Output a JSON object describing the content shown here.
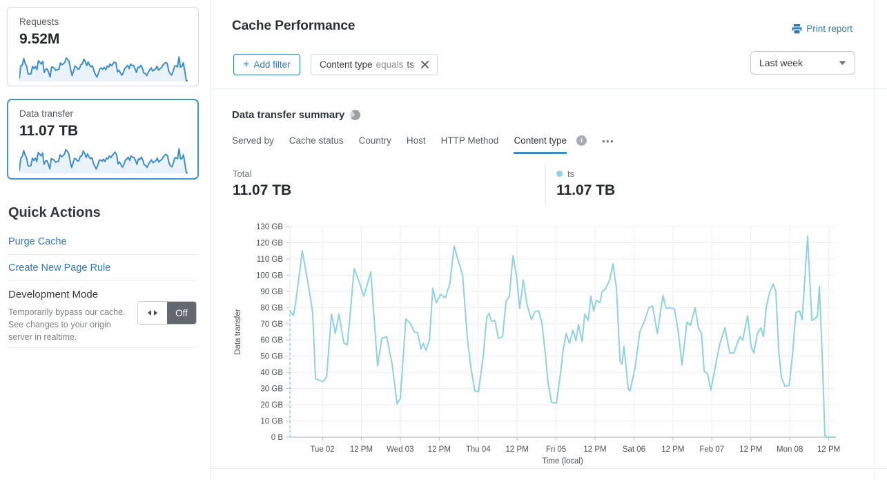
{
  "colors": {
    "accent_blue": "#2f7bb8",
    "selected_card_border": "#3e95ce",
    "spark_line": "#3e8ec9",
    "spark_fill": "#eaf2f9",
    "chart_line": "#8ed1e1",
    "tab_underline": "#3b8dc4",
    "grid": "#ececec",
    "axis": "#a4a9ad"
  },
  "sidebar": {
    "cards": [
      {
        "label": "Requests",
        "value": "9.52M",
        "selected": false,
        "spark": [
          12,
          60,
          62,
          88,
          69,
          59,
          28,
          27,
          29,
          58,
          49,
          58,
          45,
          80,
          74,
          67,
          78,
          34,
          47,
          48,
          35,
          16,
          56,
          54,
          50,
          42,
          45,
          46,
          71,
          64,
          68,
          73,
          91,
          85,
          77,
          46,
          22,
          39,
          59,
          55,
          47,
          48,
          65,
          67,
          86,
          77,
          61,
          75,
          63,
          56,
          60,
          39,
          26,
          16,
          31,
          49,
          51,
          46,
          54,
          45,
          59,
          55,
          67,
          60,
          69,
          75,
          71,
          36,
          43,
          33,
          23,
          33,
          50,
          55,
          62,
          49,
          67,
          61,
          61,
          49,
          34,
          55,
          53,
          62,
          52,
          32,
          30,
          22,
          35,
          44,
          52,
          40,
          44,
          48,
          58,
          43,
          49,
          52,
          62,
          69,
          73,
          69,
          41,
          29,
          24,
          38,
          59,
          60,
          56,
          95,
          55,
          57,
          72,
          38,
          2,
          1
        ]
      },
      {
        "label": "Data transfer",
        "value": "11.07 TB",
        "selected": true,
        "spark": [
          10,
          58,
          64,
          88,
          70,
          60,
          28,
          27,
          29,
          58,
          49,
          58,
          45,
          80,
          74,
          67,
          78,
          34,
          47,
          48,
          35,
          16,
          56,
          54,
          50,
          42,
          45,
          46,
          71,
          64,
          68,
          73,
          91,
          85,
          77,
          46,
          22,
          39,
          57,
          55,
          47,
          48,
          65,
          67,
          86,
          77,
          61,
          75,
          63,
          56,
          60,
          39,
          26,
          16,
          31,
          49,
          51,
          46,
          54,
          45,
          59,
          55,
          67,
          60,
          69,
          75,
          82,
          71,
          36,
          43,
          33,
          23,
          33,
          50,
          55,
          62,
          49,
          67,
          61,
          61,
          49,
          34,
          55,
          53,
          62,
          52,
          32,
          30,
          22,
          35,
          44,
          52,
          40,
          44,
          48,
          58,
          43,
          49,
          52,
          62,
          69,
          73,
          69,
          41,
          29,
          24,
          38,
          59,
          60,
          56,
          95,
          55,
          57,
          72,
          38,
          1,
          0
        ]
      }
    ],
    "quick_actions": {
      "title": "Quick Actions",
      "links": [
        "Purge Cache",
        "Create New Page Rule"
      ],
      "dev_mode": {
        "title": "Development Mode",
        "description": "Temporarily bypass our cache. See changes to your origin server in realtime.",
        "toggle_label": "Off"
      }
    }
  },
  "header": {
    "title": "Cache Performance",
    "print_label": "Print report"
  },
  "filters": {
    "plus": "+",
    "add_label": "Add filter",
    "chip": {
      "field": "Content type",
      "operator": "equals",
      "value": "ts"
    }
  },
  "time_range": {
    "selected": "Last week"
  },
  "summary": {
    "title": "Data transfer summary",
    "tabs": [
      {
        "label": "Served by",
        "active": false
      },
      {
        "label": "Cache status",
        "active": false
      },
      {
        "label": "Country",
        "active": false
      },
      {
        "label": "Host",
        "active": false
      },
      {
        "label": "HTTP Method",
        "active": false
      },
      {
        "label": "Content type",
        "active": true
      }
    ],
    "more_label": "•••",
    "total_label": "Total",
    "total_value": "11.07 TB",
    "series_label": "ts",
    "series_value": "11.07 TB"
  },
  "chart_data": {
    "type": "line",
    "title": "Data transfer summary",
    "xlabel": "Time (local)",
    "ylabel": "Data transfer",
    "unit": "GB",
    "ylim": [
      0,
      130
    ],
    "y_tick_step": 10,
    "y_ticks": [
      "0 B",
      "10 GB",
      "20 GB",
      "30 GB",
      "40 GB",
      "50 GB",
      "60 GB",
      "70 GB",
      "80 GB",
      "90 GB",
      "100 GB",
      "110 GB",
      "120 GB",
      "130 GB"
    ],
    "xlim_hours": [
      0,
      168
    ],
    "x_tick_first_hour": 10,
    "x_tick_interval_hours": 12,
    "x_ticks": [
      "Tue 02",
      "12 PM",
      "Wed 03",
      "12 PM",
      "Thu 04",
      "12 PM",
      "Fri 05",
      "12 PM",
      "Sat 06",
      "12 PM",
      "Feb 07",
      "12 PM",
      "Mon 08",
      "12 PM"
    ],
    "grid": true,
    "start_dashed_baseline": true,
    "series": [
      {
        "name": "ts",
        "color": "#8ed1e1",
        "points": [
          [
            0,
            78
          ],
          [
            1.1,
            75
          ],
          [
            2.1,
            88
          ],
          [
            3.8,
            115
          ],
          [
            6,
            90
          ],
          [
            7,
            77
          ],
          [
            7.9,
            36
          ],
          [
            9.1,
            35
          ],
          [
            10.2,
            34.5
          ],
          [
            11.3,
            37
          ],
          [
            12.8,
            76
          ],
          [
            14,
            64
          ],
          [
            15.1,
            76
          ],
          [
            16.6,
            58
          ],
          [
            17.7,
            57
          ],
          [
            19.8,
            104
          ],
          [
            21.3,
            96
          ],
          [
            22.8,
            87
          ],
          [
            24.9,
            102
          ],
          [
            27,
            44
          ],
          [
            28.3,
            61
          ],
          [
            29.8,
            62
          ],
          [
            31.5,
            45
          ],
          [
            33,
            20.5
          ],
          [
            34,
            24
          ],
          [
            35.7,
            73
          ],
          [
            37.2,
            70
          ],
          [
            38.3,
            65
          ],
          [
            39.3,
            64.5
          ],
          [
            40.4,
            54.5
          ],
          [
            41.1,
            58
          ],
          [
            41.9,
            53.5
          ],
          [
            43,
            60
          ],
          [
            44,
            92
          ],
          [
            45.1,
            83
          ],
          [
            46.4,
            88
          ],
          [
            47.9,
            86
          ],
          [
            49.3,
            95
          ],
          [
            50.6,
            118
          ],
          [
            51.7,
            110
          ],
          [
            53.2,
            100
          ],
          [
            54.7,
            60
          ],
          [
            55.9,
            41
          ],
          [
            57,
            28.5
          ],
          [
            58.1,
            28
          ],
          [
            59.6,
            51
          ],
          [
            60.6,
            74
          ],
          [
            61.3,
            76.5
          ],
          [
            62.1,
            71.5
          ],
          [
            63.2,
            72
          ],
          [
            64.2,
            61
          ],
          [
            65.5,
            62
          ],
          [
            66.6,
            84
          ],
          [
            67.6,
            87
          ],
          [
            68.7,
            112
          ],
          [
            69.8,
            100
          ],
          [
            70.8,
            79.5
          ],
          [
            71.9,
            97
          ],
          [
            73,
            82
          ],
          [
            74.4,
            72.5
          ],
          [
            75.5,
            77.5
          ],
          [
            76.6,
            78
          ],
          [
            77.6,
            71
          ],
          [
            78.7,
            51
          ],
          [
            79.5,
            34
          ],
          [
            80.6,
            21.5
          ],
          [
            82.1,
            21
          ],
          [
            83.4,
            40
          ],
          [
            84.2,
            54
          ],
          [
            85.1,
            64
          ],
          [
            86.1,
            58
          ],
          [
            87.2,
            66
          ],
          [
            88.1,
            59.5
          ],
          [
            88.9,
            69.5
          ],
          [
            90,
            59
          ],
          [
            90.8,
            76
          ],
          [
            91.9,
            72
          ],
          [
            92.7,
            87
          ],
          [
            93.6,
            78
          ],
          [
            94.4,
            84.5
          ],
          [
            95.5,
            83
          ],
          [
            96.1,
            89.5
          ],
          [
            97.2,
            91.5
          ],
          [
            98.5,
            97
          ],
          [
            99.5,
            107
          ],
          [
            100.6,
            92
          ],
          [
            101.7,
            47
          ],
          [
            102.3,
            45
          ],
          [
            102.9,
            56
          ],
          [
            103.6,
            42.5
          ],
          [
            104.2,
            30
          ],
          [
            104.8,
            28.5
          ],
          [
            106.3,
            42.5
          ],
          [
            107.8,
            65
          ],
          [
            109.1,
            71
          ],
          [
            110.6,
            80
          ],
          [
            111.7,
            81
          ],
          [
            113.2,
            64
          ],
          [
            114.9,
            87.5
          ],
          [
            115.9,
            79.5
          ],
          [
            117,
            80
          ],
          [
            118.5,
            79
          ],
          [
            119.7,
            64
          ],
          [
            120.8,
            44.5
          ],
          [
            122.3,
            71
          ],
          [
            123.4,
            69
          ],
          [
            124.8,
            80
          ],
          [
            125.9,
            67
          ],
          [
            126.8,
            64
          ],
          [
            127.6,
            41
          ],
          [
            128.7,
            39
          ],
          [
            129.7,
            29
          ],
          [
            131.2,
            45.5
          ],
          [
            132.5,
            58
          ],
          [
            134,
            67.5
          ],
          [
            135.5,
            52
          ],
          [
            136.8,
            52
          ],
          [
            137.8,
            58
          ],
          [
            138.7,
            62
          ],
          [
            139.5,
            60
          ],
          [
            141,
            75
          ],
          [
            142.1,
            56
          ],
          [
            142.9,
            52
          ],
          [
            144,
            64
          ],
          [
            145.1,
            67.5
          ],
          [
            145.9,
            62
          ],
          [
            146.8,
            81
          ],
          [
            147.8,
            89.5
          ],
          [
            148.9,
            94.5
          ],
          [
            149.7,
            90
          ],
          [
            150.6,
            53
          ],
          [
            151.4,
            37
          ],
          [
            152.5,
            31.5
          ],
          [
            153.8,
            32
          ],
          [
            154.8,
            50
          ],
          [
            155.9,
            77
          ],
          [
            157,
            78
          ],
          [
            157.8,
            72.5
          ],
          [
            159.5,
            124
          ],
          [
            160.8,
            72
          ],
          [
            161.6,
            73
          ],
          [
            162.5,
            74.5
          ],
          [
            163.1,
            93
          ],
          [
            164,
            50
          ],
          [
            164.8,
            1
          ],
          [
            165.5,
            0
          ],
          [
            168,
            0
          ]
        ]
      }
    ]
  }
}
